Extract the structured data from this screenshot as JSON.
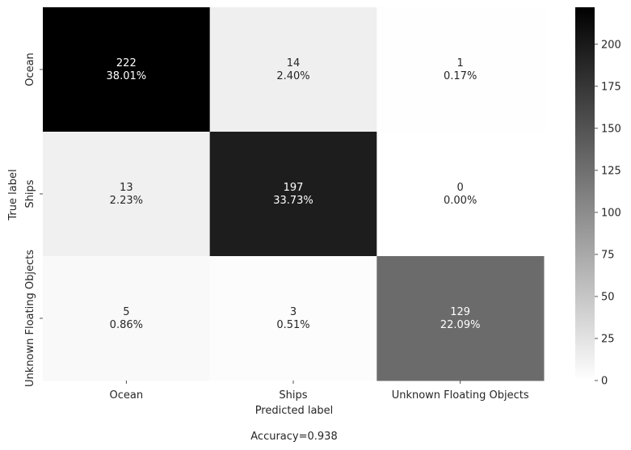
{
  "chart_data": {
    "type": "heatmap",
    "title": "",
    "xlabel": "Predicted label",
    "ylabel": "True label",
    "footer": "Accuracy=0.938",
    "x_categories": [
      "Ocean",
      "Ships",
      "Unknown Floating Objects"
    ],
    "y_categories": [
      "Ocean",
      "Ships",
      "Unknown Floating Objects"
    ],
    "values": [
      [
        222,
        14,
        1
      ],
      [
        13,
        197,
        0
      ],
      [
        5,
        3,
        129
      ]
    ],
    "percentages": [
      [
        "38.01%",
        "2.40%",
        "0.17%"
      ],
      [
        "2.23%",
        "33.73%",
        "0.00%"
      ],
      [
        "0.86%",
        "0.51%",
        "22.09%"
      ]
    ],
    "colormap": "Greys",
    "color_min": "#ffffff",
    "color_max": "#000000",
    "color_light_text": "#ffffff",
    "color_dark_text": "#262626",
    "colorbar": {
      "range": [
        0,
        222
      ],
      "ticks": [
        0,
        25,
        50,
        75,
        100,
        125,
        150,
        175,
        200
      ]
    }
  }
}
